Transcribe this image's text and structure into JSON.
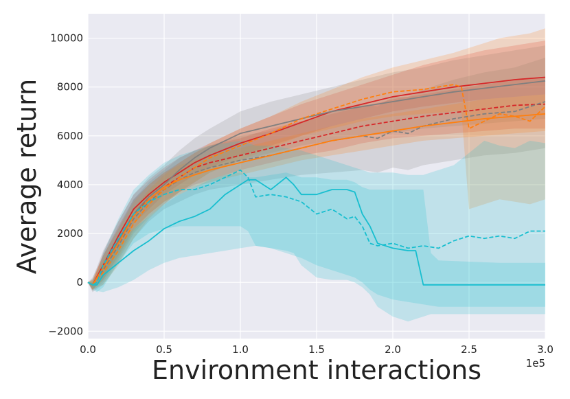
{
  "chart_data": {
    "type": "line",
    "title": "",
    "xlabel": "Environment interactions",
    "ylabel": "Average return",
    "x_offset_label": "1e5",
    "xlim": [
      0,
      3.0
    ],
    "ylim": [
      -2300,
      11000
    ],
    "xticks": [
      0.0,
      0.5,
      1.0,
      1.5,
      2.0,
      2.5,
      3.0
    ],
    "xtick_labels": [
      "0.0",
      "0.5",
      "1.0",
      "1.5",
      "2.0",
      "2.5",
      "3.0"
    ],
    "yticks": [
      -2000,
      0,
      2000,
      4000,
      6000,
      8000,
      10000
    ],
    "ytick_labels": [
      "−2000",
      "0",
      "2000",
      "4000",
      "6000",
      "8000",
      "10000"
    ],
    "grid": true,
    "background": "#eaeaf2",
    "series": [
      {
        "name": "red-solid",
        "color": "#d62728",
        "dash": "solid",
        "x": [
          0,
          0.03,
          0.1,
          0.2,
          0.3,
          0.4,
          0.5,
          0.6,
          0.7,
          0.8,
          1.0,
          1.2,
          1.4,
          1.6,
          1.8,
          2.0,
          2.2,
          2.4,
          2.6,
          2.8,
          3.0
        ],
        "y": [
          0,
          -100,
          700,
          1900,
          3000,
          3600,
          4100,
          4500,
          4900,
          5200,
          5700,
          6100,
          6550,
          7000,
          7300,
          7600,
          7800,
          8000,
          8150,
          8300,
          8400
        ],
        "lower": [
          0,
          -300,
          200,
          1300,
          2400,
          3000,
          3600,
          4000,
          4400,
          4700,
          5200,
          5600,
          6000,
          6400,
          6700,
          7000,
          7200,
          7350,
          7500,
          7600,
          7700
        ],
        "upper": [
          0,
          0,
          1200,
          2500,
          3600,
          4200,
          4700,
          5100,
          5400,
          5700,
          6300,
          6800,
          7300,
          7700,
          8100,
          8500,
          8900,
          9200,
          9500,
          9700,
          9900
        ]
      },
      {
        "name": "red-dashed",
        "color": "#d62728",
        "dash": "dashed",
        "x": [
          0,
          0.03,
          0.1,
          0.2,
          0.3,
          0.4,
          0.5,
          0.6,
          0.7,
          0.8,
          1.0,
          1.2,
          1.4,
          1.6,
          1.8,
          2.0,
          2.2,
          2.4,
          2.6,
          2.8,
          3.0
        ],
        "y": [
          0,
          -100,
          600,
          1700,
          2800,
          3400,
          3900,
          4300,
          4700,
          4900,
          5200,
          5500,
          5800,
          6100,
          6400,
          6600,
          6800,
          6950,
          7100,
          7250,
          7300
        ],
        "lower": [
          0,
          -300,
          100,
          1100,
          2200,
          2800,
          3300,
          3700,
          4000,
          4200,
          4600,
          4900,
          5200,
          5400,
          5700,
          5900,
          6000,
          6100,
          6200,
          6300,
          6300
        ],
        "upper": [
          0,
          50,
          1100,
          2300,
          3400,
          4000,
          4500,
          4900,
          5300,
          5600,
          5900,
          6300,
          6600,
          6900,
          7200,
          7500,
          7700,
          7900,
          8100,
          8300,
          8400
        ]
      },
      {
        "name": "gray-solid",
        "color": "#7f7f7f",
        "dash": "solid",
        "x": [
          0,
          0.03,
          0.1,
          0.2,
          0.3,
          0.4,
          0.5,
          0.6,
          0.7,
          0.8,
          1.0,
          1.2,
          1.4,
          1.6,
          1.8,
          2.0,
          2.2,
          2.4,
          2.6,
          2.8,
          3.0
        ],
        "y": [
          0,
          -100,
          600,
          1700,
          2800,
          3500,
          4000,
          4600,
          5100,
          5500,
          6100,
          6400,
          6700,
          7000,
          7200,
          7400,
          7600,
          7800,
          7950,
          8100,
          8250
        ],
        "lower": [
          0,
          -350,
          0,
          900,
          2000,
          2700,
          3200,
          3700,
          4100,
          4500,
          5000,
          5300,
          5600,
          5800,
          6000,
          6100,
          6300,
          6400,
          6500,
          6600,
          6700
        ],
        "upper": [
          0,
          150,
          1300,
          2500,
          3600,
          4300,
          4800,
          5400,
          5900,
          6300,
          7000,
          7400,
          7700,
          8000,
          8300,
          8600,
          8800,
          9100,
          9300,
          9500,
          9700
        ]
      },
      {
        "name": "gray-dashed",
        "color": "#7f7f7f",
        "dash": "dashed",
        "x": [
          0,
          0.03,
          0.1,
          0.2,
          0.3,
          0.4,
          0.5,
          0.6,
          0.7,
          0.8,
          1.0,
          1.2,
          1.4,
          1.6,
          1.8,
          1.9,
          2.0,
          2.1,
          2.2,
          2.4,
          2.6,
          2.8,
          2.9,
          3.0
        ],
        "y": [
          0,
          -100,
          500,
          1500,
          2600,
          3300,
          3800,
          4200,
          4500,
          4700,
          5000,
          5200,
          5500,
          5800,
          6000,
          5900,
          6200,
          6100,
          6400,
          6700,
          6900,
          7000,
          7200,
          7400
        ],
        "lower": [
          0,
          -400,
          -100,
          800,
          1800,
          2500,
          3000,
          3300,
          3600,
          3800,
          4000,
          4200,
          4400,
          4500,
          4600,
          4500,
          4700,
          4600,
          4800,
          5000,
          5200,
          5300,
          5400,
          5500
        ],
        "upper": [
          0,
          200,
          1100,
          2200,
          3400,
          4100,
          4600,
          5100,
          5400,
          5600,
          6000,
          6200,
          6600,
          7000,
          7300,
          7200,
          7600,
          7600,
          7900,
          8300,
          8600,
          8800,
          9000,
          9200
        ]
      },
      {
        "name": "orange-solid",
        "color": "#ff7f0e",
        "dash": "solid",
        "x": [
          0,
          0.03,
          0.1,
          0.2,
          0.3,
          0.4,
          0.5,
          0.6,
          0.7,
          0.8,
          1.0,
          1.2,
          1.4,
          1.6,
          1.8,
          2.0,
          2.2,
          2.4,
          2.6,
          2.8,
          3.0
        ],
        "y": [
          0,
          -100,
          600,
          1600,
          2700,
          3400,
          3900,
          4200,
          4400,
          4600,
          4900,
          5200,
          5500,
          5800,
          6000,
          6200,
          6400,
          6550,
          6700,
          6800,
          6900
        ],
        "lower": [
          0,
          -300,
          100,
          1000,
          2100,
          2800,
          3300,
          3600,
          3900,
          4100,
          4400,
          4700,
          5000,
          5200,
          5400,
          5600,
          5800,
          5900,
          6000,
          6100,
          6200
        ],
        "upper": [
          0,
          100,
          1100,
          2200,
          3300,
          4000,
          4500,
          4800,
          5000,
          5200,
          5500,
          5800,
          6100,
          6400,
          6700,
          6900,
          7100,
          7300,
          7500,
          7600,
          7700
        ]
      },
      {
        "name": "orange-dashed",
        "color": "#ff7f0e",
        "dash": "dashed",
        "x": [
          0,
          0.03,
          0.1,
          0.2,
          0.3,
          0.4,
          0.5,
          0.6,
          0.7,
          0.8,
          1.0,
          1.2,
          1.4,
          1.6,
          1.8,
          2.0,
          2.2,
          2.4,
          2.45,
          2.5,
          2.6,
          2.7,
          2.8,
          2.9,
          3.0
        ],
        "y": [
          0,
          -100,
          400,
          1300,
          2400,
          3200,
          3800,
          4300,
          4700,
          5100,
          5600,
          6100,
          6700,
          7100,
          7500,
          7800,
          7900,
          8100,
          8000,
          6300,
          6600,
          6900,
          6800,
          6600,
          7200
        ],
        "lower": [
          0,
          -300,
          -100,
          700,
          1800,
          2600,
          3200,
          3700,
          4100,
          4500,
          5000,
          5500,
          6000,
          6300,
          6600,
          6800,
          6900,
          7000,
          7000,
          3000,
          3200,
          3400,
          3300,
          3200,
          3400
        ],
        "upper": [
          0,
          100,
          900,
          1900,
          3000,
          3800,
          4400,
          4900,
          5300,
          5700,
          6300,
          6800,
          7400,
          7900,
          8400,
          8800,
          9100,
          9400,
          9500,
          9600,
          9800,
          10000,
          10100,
          10200,
          10400
        ]
      },
      {
        "name": "cyan-solid",
        "color": "#17becf",
        "dash": "solid",
        "x": [
          0,
          0.03,
          0.06,
          0.1,
          0.2,
          0.3,
          0.4,
          0.5,
          0.6,
          0.7,
          0.8,
          0.9,
          1.0,
          1.05,
          1.1,
          1.2,
          1.3,
          1.35,
          1.4,
          1.5,
          1.6,
          1.7,
          1.75,
          1.8,
          1.85,
          1.9,
          2.0,
          2.1,
          2.15,
          2.2,
          2.25,
          2.3,
          2.5,
          2.7,
          2.9,
          3.0
        ],
        "y": [
          0,
          -100,
          -100,
          300,
          800,
          1300,
          1700,
          2200,
          2500,
          2700,
          3000,
          3600,
          4000,
          4200,
          4200,
          3800,
          4300,
          4000,
          3600,
          3600,
          3800,
          3800,
          3700,
          2800,
          2300,
          1600,
          1400,
          1300,
          1300,
          -100,
          -100,
          -100,
          -100,
          -100,
          -100,
          -100
        ],
        "lower": [
          0,
          -200,
          -350,
          -400,
          -200,
          100,
          500,
          800,
          1000,
          1100,
          1200,
          1300,
          1400,
          1450,
          1500,
          1400,
          1300,
          1200,
          700,
          200,
          100,
          100,
          0,
          -200,
          -500,
          -1000,
          -1400,
          -1600,
          -1500,
          -1400,
          -1300,
          -1300,
          -1300,
          -1300,
          -1300,
          -1300
        ],
        "upper": [
          0,
          0,
          200,
          700,
          1500,
          2200,
          2700,
          3200,
          3600,
          3900,
          4200,
          4400,
          4500,
          4300,
          4300,
          4400,
          4500,
          4400,
          4300,
          4300,
          4200,
          4200,
          4100,
          3900,
          3800,
          3800,
          3800,
          3800,
          3800,
          3800,
          1200,
          900,
          850,
          800,
          800,
          800
        ]
      },
      {
        "name": "cyan-dashed",
        "color": "#17becf",
        "dash": "dashed",
        "x": [
          0,
          0.03,
          0.06,
          0.1,
          0.2,
          0.3,
          0.4,
          0.5,
          0.6,
          0.7,
          0.8,
          0.9,
          1.0,
          1.05,
          1.1,
          1.2,
          1.3,
          1.4,
          1.5,
          1.6,
          1.7,
          1.75,
          1.8,
          1.85,
          1.9,
          2.0,
          2.1,
          2.2,
          2.3,
          2.4,
          2.5,
          2.6,
          2.7,
          2.8,
          2.9,
          3.0
        ],
        "y": [
          0,
          -100,
          0,
          700,
          1800,
          2800,
          3300,
          3600,
          3800,
          3800,
          4000,
          4300,
          4600,
          4300,
          3500,
          3600,
          3500,
          3300,
          2800,
          3000,
          2600,
          2700,
          2300,
          1600,
          1500,
          1600,
          1400,
          1500,
          1400,
          1700,
          1900,
          1800,
          1900,
          1800,
          2100,
          2100
        ],
        "lower": [
          0,
          -300,
          -400,
          -200,
          800,
          1600,
          2000,
          2200,
          2300,
          2300,
          2300,
          2300,
          2300,
          2100,
          1500,
          1400,
          1200,
          1000,
          700,
          500,
          300,
          200,
          0,
          -300,
          -500,
          -700,
          -800,
          -900,
          -1000,
          -1000,
          -1000,
          -1000,
          -1000,
          -1000,
          -1000,
          -1000
        ],
        "upper": [
          0,
          100,
          300,
          1200,
          2600,
          3800,
          4400,
          4900,
          5200,
          5400,
          5600,
          5700,
          5800,
          5700,
          5600,
          5600,
          5500,
          5400,
          5200,
          5000,
          4800,
          4700,
          4600,
          4500,
          4500,
          4500,
          4400,
          4400,
          4600,
          4800,
          5300,
          5800,
          5600,
          5500,
          5800,
          5700
        ]
      }
    ]
  }
}
